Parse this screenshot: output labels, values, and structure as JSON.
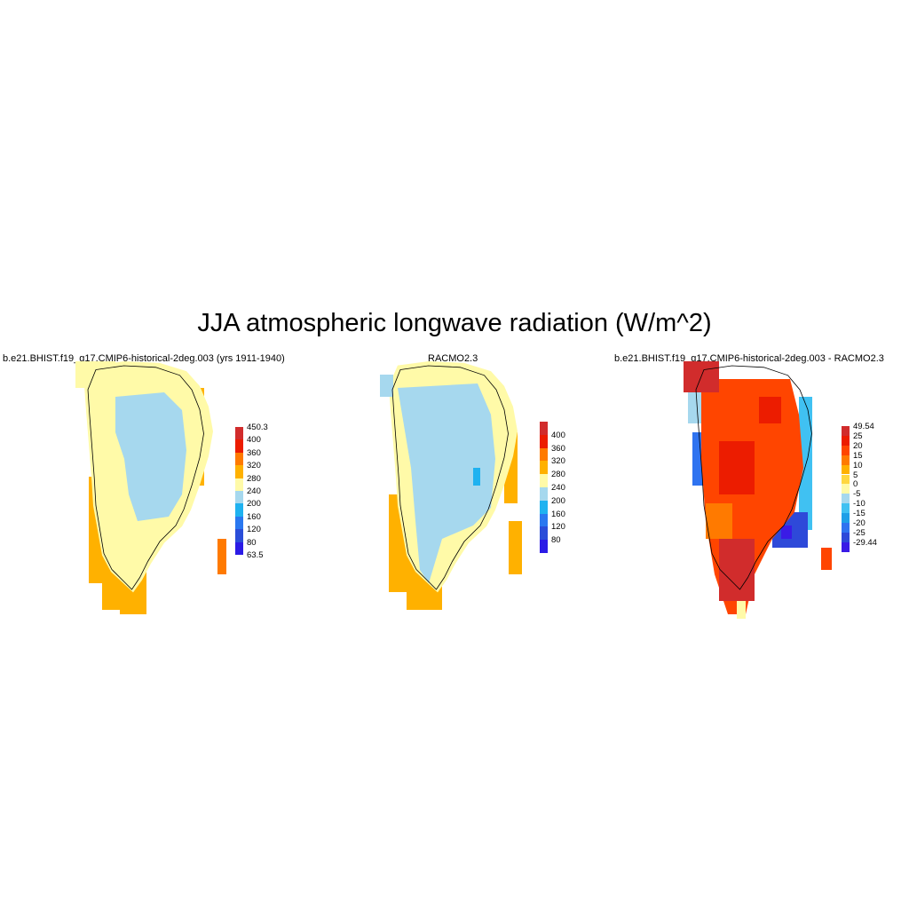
{
  "figure": {
    "title": "JJA atmospheric longwave radiation (W/m^2)"
  },
  "colors": {
    "abs_scale": [
      "#2b1be6",
      "#2b4ed9",
      "#2a78f0",
      "#1fb2f0",
      "#a6d8ee",
      "#fffaa8",
      "#ffb100",
      "#ff7a00",
      "#ec1c00",
      "#d12c2c"
    ],
    "diff_scale": [
      "#3a1be6",
      "#2e49d9",
      "#2f73f0",
      "#1e9fe8",
      "#40c1f2",
      "#a6d8ee",
      "#fffaa8",
      "#ffd740",
      "#ffb100",
      "#ff7a00",
      "#ff4500",
      "#ec1c00",
      "#d12c2c"
    ]
  },
  "panels": [
    {
      "id": "model",
      "title": "b.e21.BHIST.f19_g17.CMIP6-historical-2deg.003 (yrs 1911-1940)",
      "colorbar_labels": [
        "450.3",
        "400",
        "360",
        "320",
        "280",
        "240",
        "200",
        "160",
        "120",
        "80",
        "63.5"
      ],
      "field": "interior ~240-280 (light blue), margins 280-320 (light yellow), coastal 320-360 (orange)"
    },
    {
      "id": "obs",
      "title": "RACMO2.3",
      "colorbar_labels": [
        "400",
        "360",
        "320",
        "280",
        "240",
        "200",
        "160",
        "120",
        "80"
      ],
      "field": "interior 240-280 (light blue), small 200-240 patch, margins 280-360"
    },
    {
      "id": "diff",
      "title": "b.e21.BHIST.f19_g17.CMIP6-historical-2deg.003 - RACMO2.3",
      "colorbar_labels": [
        "49.54",
        "25",
        "20",
        "15",
        "10",
        "5",
        "0",
        "-5",
        "-10",
        "-15",
        "-20",
        "-25",
        "-29.44"
      ],
      "field": "interior +15 to +25, southern tip > +25, eastern margin -5 to -29.44"
    }
  ]
}
